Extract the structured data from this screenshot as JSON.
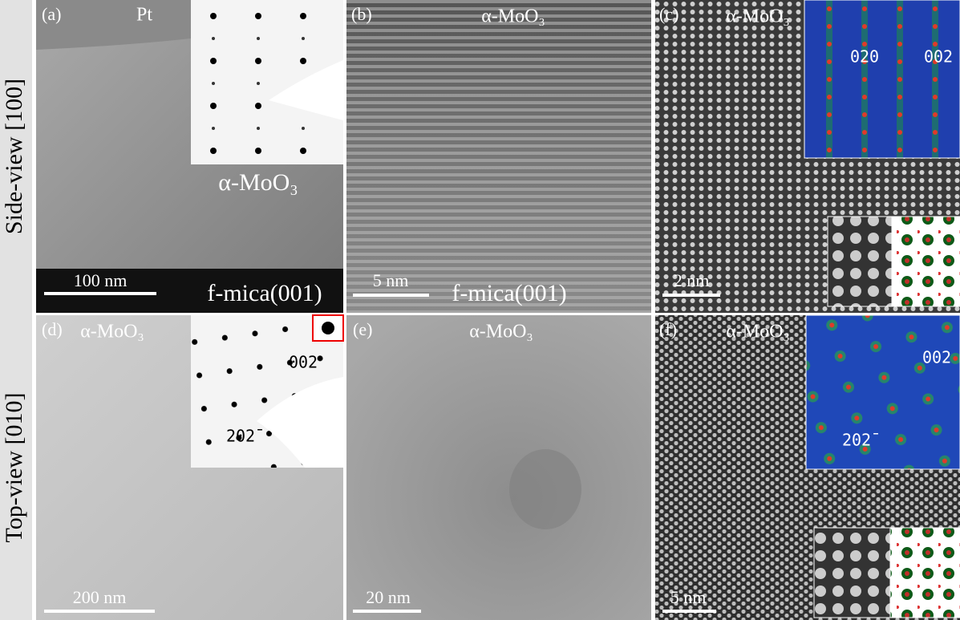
{
  "row_labels": [
    "Side-view [100]",
    "Top-view [010]"
  ],
  "panels": [
    {
      "label": "(a)",
      "texts": [
        "Pt",
        "α-MoO₃",
        "f-mica(001)"
      ],
      "scale_bar": "100 nm"
    },
    {
      "label": "(b)",
      "texts": [
        "α-MoO₃",
        "f-mica(001)"
      ],
      "scale_bar": "5 nm"
    },
    {
      "label": "(c)",
      "texts": [
        "α-MoO₃"
      ],
      "scale_bar": "2 nm",
      "inset_labels": [
        "020",
        "002"
      ]
    },
    {
      "label": "(d)",
      "texts": [
        "α-MoO₃"
      ],
      "scale_bar": "200 nm",
      "inset_labels": [
        "002",
        "202̄"
      ]
    },
    {
      "label": "(e)",
      "texts": [
        "α-MoO₃"
      ],
      "scale_bar": "20 nm"
    },
    {
      "label": "(f)",
      "texts": [
        "α-MoO₃"
      ],
      "scale_bar": "5 nm",
      "inset_labels": [
        "002",
        "202̄"
      ]
    }
  ]
}
